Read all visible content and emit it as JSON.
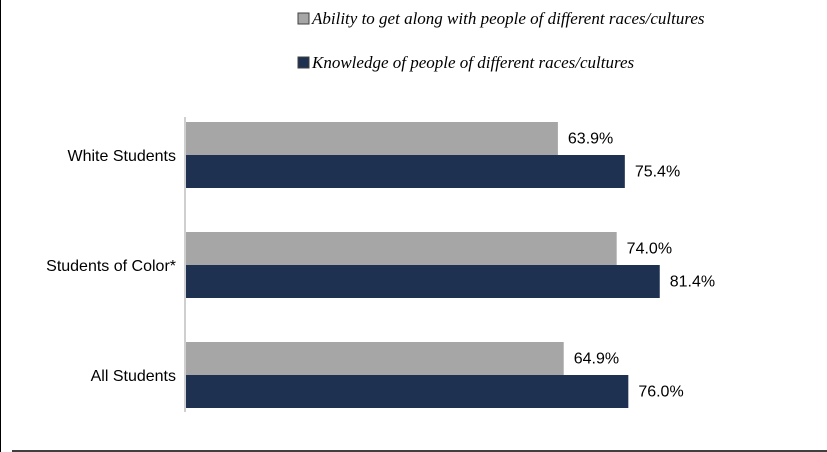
{
  "chart_data": {
    "type": "bar",
    "orientation": "horizontal",
    "title": "",
    "xlabel": "",
    "ylabel": "",
    "categories": [
      "White Students",
      "Students of Color*",
      "All Students"
    ],
    "series": [
      {
        "name": "Ability to get along with people of different races/cultures",
        "color": "#a6a6a6",
        "values": [
          63.9,
          74.0,
          64.9
        ],
        "labels": [
          "63.9%",
          "74.0%",
          "64.9%"
        ]
      },
      {
        "name": "Knowledge of people of different races/cultures",
        "color": "#1f3150",
        "values": [
          75.4,
          81.4,
          76.0
        ],
        "labels": [
          "75.4%",
          "81.4%",
          "76.0%"
        ]
      }
    ],
    "xlim": [
      0,
      100
    ],
    "grid": false,
    "legend": "top-right",
    "axis_color": "#bfbfbf"
  }
}
